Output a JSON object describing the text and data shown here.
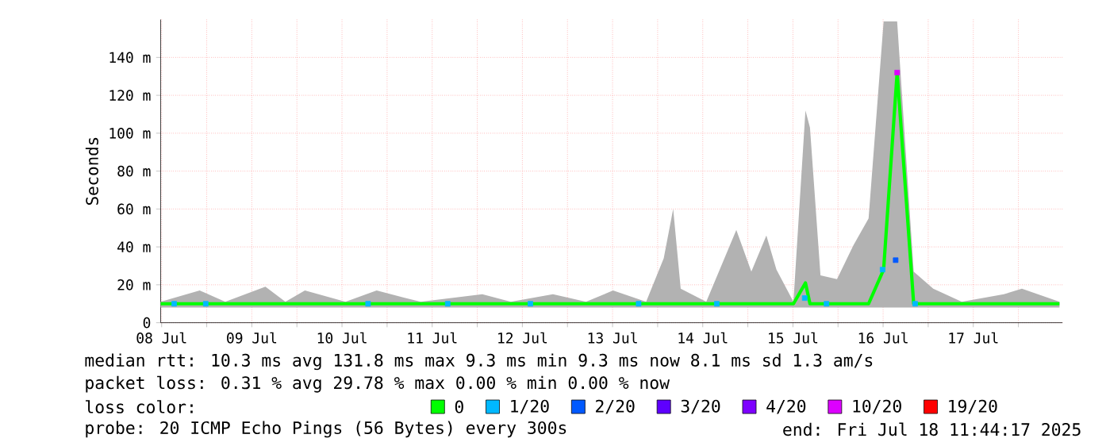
{
  "chart_data": {
    "type": "line",
    "ylabel": "Seconds",
    "xlim": [
      "2025-07-08T11:44",
      "2025-07-18T11:44"
    ],
    "xticks": [
      {
        "value": "2025-07-08T12:00",
        "label": "08 Jul"
      },
      {
        "value": "2025-07-09T00:00",
        "label": null
      },
      {
        "value": "2025-07-09T12:00",
        "label": "09 Jul"
      },
      {
        "value": "2025-07-10T00:00",
        "label": null
      },
      {
        "value": "2025-07-10T12:00",
        "label": "10 Jul"
      },
      {
        "value": "2025-07-11T00:00",
        "label": null
      },
      {
        "value": "2025-07-11T12:00",
        "label": "11 Jul"
      },
      {
        "value": "2025-07-12T00:00",
        "label": null
      },
      {
        "value": "2025-07-12T12:00",
        "label": "12 Jul"
      },
      {
        "value": "2025-07-13T00:00",
        "label": null
      },
      {
        "value": "2025-07-13T12:00",
        "label": "13 Jul"
      },
      {
        "value": "2025-07-14T00:00",
        "label": null
      },
      {
        "value": "2025-07-14T12:00",
        "label": "14 Jul"
      },
      {
        "value": "2025-07-15T00:00",
        "label": null
      },
      {
        "value": "2025-07-15T12:00",
        "label": "15 Jul"
      },
      {
        "value": "2025-07-16T00:00",
        "label": null
      },
      {
        "value": "2025-07-16T12:00",
        "label": "16 Jul"
      },
      {
        "value": "2025-07-17T00:00",
        "label": null
      },
      {
        "value": "2025-07-17T12:00",
        "label": "17 Jul"
      },
      {
        "value": "2025-07-18T00:00",
        "label": null
      }
    ],
    "ylim": [
      0,
      160
    ],
    "yticks": [
      0,
      {
        "value": 20,
        "label": "20 m"
      },
      {
        "value": 40,
        "label": "40 m"
      },
      {
        "value": 60,
        "label": "60 m"
      },
      {
        "value": 80,
        "label": "80 m"
      },
      {
        "value": 100,
        "label": "100 m"
      },
      {
        "value": 120,
        "label": "120 m"
      },
      {
        "value": 140,
        "label": "140 m"
      }
    ],
    "grid": true,
    "legend": "bottom",
    "legend_title": "loss color:",
    "series": [
      {
        "name": "0",
        "color": "#00ff00",
        "marker": "none",
        "line_style": "solid",
        "x": [
          "2025-07-08T11:44",
          "2025-07-08T22:08",
          "2025-07-09T04:56",
          "2025-07-09T15:37",
          "2025-07-09T20:56",
          "2025-07-10T02:08",
          "2025-07-10T12:56",
          "2025-07-10T21:13",
          "2025-07-11T08:56",
          "2025-07-12T01:20",
          "2025-07-12T08:56",
          "2025-07-12T20:08",
          "2025-07-13T04:56",
          "2025-07-13T12:08",
          "2025-07-13T20:56",
          "2025-07-14T01:37",
          "2025-07-14T04:08",
          "2025-07-14T06:08",
          "2025-07-14T12:56",
          "2025-07-14T20:56",
          "2025-07-15T00:56",
          "2025-07-15T04:56",
          "2025-07-15T07:37",
          "2025-07-15T12:08",
          "2025-07-15T15:20",
          "2025-07-15T16:32",
          "2025-07-15T19:20",
          "2025-07-15T23:44",
          "2025-07-16T04:08",
          "2025-07-16T08:08",
          "2025-07-16T12:08",
          "2025-07-16T15:44",
          "2025-07-16T20:08",
          "2025-07-17T01:20",
          "2025-07-17T08:56",
          "2025-07-17T20:08",
          "2025-07-18T00:56",
          "2025-07-18T10:56"
        ],
        "values": [
          10,
          10,
          10,
          10,
          10,
          10,
          10,
          10,
          10,
          10,
          10,
          10,
          10,
          10,
          10,
          10,
          10,
          10,
          10,
          10,
          10,
          10,
          10,
          10,
          21,
          10,
          10,
          10,
          10,
          10,
          28,
          132,
          10,
          10,
          10,
          10,
          10,
          10
        ],
        "lower": [
          8,
          8,
          8,
          8,
          8,
          8,
          8,
          8,
          8,
          8,
          8,
          8,
          8,
          8,
          8,
          8,
          8,
          8,
          8,
          8,
          8,
          8,
          8,
          8,
          8,
          8,
          8,
          8,
          8,
          8,
          8,
          8,
          8,
          8,
          8,
          8,
          8,
          8
        ],
        "upper": [
          11,
          17,
          11,
          19,
          11,
          17,
          11,
          17,
          11,
          15,
          11,
          15,
          11,
          17,
          11,
          34,
          60,
          18,
          11,
          49,
          27,
          46,
          28,
          11,
          112,
          103,
          25,
          23,
          41,
          55,
          159,
          159,
          27,
          18,
          11,
          15,
          18,
          11
        ]
      },
      {
        "name": "1/20",
        "type": "scatter",
        "color": "#00b8ff",
        "marker": "square",
        "x": [
          "2025-07-08T15:20",
          "2025-07-08T23:44",
          "2025-07-10T18:56",
          "2025-07-11T16:08",
          "2025-07-12T14:08",
          "2025-07-13T18:56",
          "2025-07-14T15:44",
          "2025-07-15T15:08",
          "2025-07-15T20:56",
          "2025-07-16T11:51",
          "2025-07-16T20:32"
        ],
        "values": [
          10,
          10,
          10,
          10,
          10,
          10,
          10,
          13,
          10,
          28,
          10
        ]
      },
      {
        "name": "2/20",
        "type": "scatter",
        "color": "#0059ff",
        "marker": "square",
        "x": [
          "2025-07-16T15:20"
        ],
        "values": [
          33
        ]
      },
      {
        "name": "3/20",
        "type": "scatter",
        "color": "#5e00ff",
        "marker": "square"
      },
      {
        "name": "4/20",
        "type": "scatter",
        "color": "#7e00ff",
        "marker": "square"
      },
      {
        "name": "10/20",
        "type": "scatter",
        "color": "#dd00ff",
        "marker": "square",
        "x": [
          "2025-07-16T15:44"
        ],
        "values": [
          132
        ]
      },
      {
        "name": "19/20",
        "type": "scatter",
        "color": "#ff0000",
        "marker": "square"
      }
    ],
    "annotations": [
      "median rtt:  10.3 ms avg  131.8 ms max  9.3 ms min  9.3 ms now  8.1 ms sd  1.3   am/s",
      "packet loss: 0.31 % avg  29.78 % max  0.00 % min  0.00 % now",
      "probe:       20 ICMP Echo Pings (56 Bytes) every 300s",
      "end: Fri Jul 18 11:44:17 2025"
    ]
  }
}
